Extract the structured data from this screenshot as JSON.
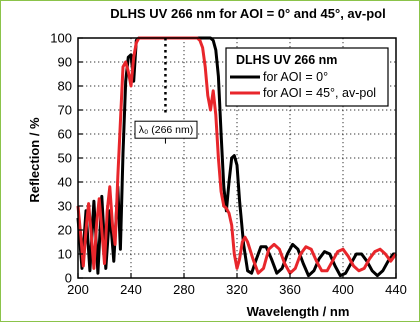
{
  "chart_data": {
    "type": "line",
    "title": "DLHS UV 266 nm for AOI = 0° and 45°, av-pol",
    "xlabel": "Wavelength / nm",
    "ylabel": "Reflection / %",
    "xlim": [
      200,
      440
    ],
    "ylim": [
      0,
      100
    ],
    "xticks": [
      200,
      240,
      280,
      320,
      360,
      400,
      440
    ],
    "yticks": [
      0,
      10,
      20,
      30,
      40,
      50,
      60,
      70,
      80,
      90,
      100
    ],
    "grid": true,
    "legend": {
      "title": "DLHS UV 266 nm",
      "position": "top-right"
    },
    "annotation": {
      "text": "λ₀ (266 nm)",
      "x": 266
    },
    "series": [
      {
        "name": "for AOI = 0°",
        "color": "#000000",
        "points": [
          [
            200,
            25
          ],
          [
            203,
            4
          ],
          [
            206,
            28
          ],
          [
            209,
            3
          ],
          [
            212,
            32
          ],
          [
            215,
            2
          ],
          [
            218,
            34
          ],
          [
            221,
            4
          ],
          [
            224,
            28
          ],
          [
            227,
            7
          ],
          [
            230,
            38
          ],
          [
            232,
            12
          ],
          [
            234,
            52
          ],
          [
            236,
            82
          ],
          [
            238,
            92
          ],
          [
            240,
            93
          ],
          [
            242,
            82
          ],
          [
            244,
            99
          ],
          [
            246,
            100
          ],
          [
            300,
            100
          ],
          [
            302,
            99
          ],
          [
            304,
            95
          ],
          [
            306,
            84
          ],
          [
            308,
            60
          ],
          [
            310,
            38
          ],
          [
            312,
            28
          ],
          [
            314,
            40
          ],
          [
            316,
            50
          ],
          [
            318,
            51
          ],
          [
            320,
            47
          ],
          [
            322,
            32
          ],
          [
            325,
            14
          ],
          [
            328,
            3
          ],
          [
            331,
            2
          ],
          [
            334,
            7
          ],
          [
            338,
            13
          ],
          [
            342,
            13
          ],
          [
            346,
            8
          ],
          [
            350,
            2
          ],
          [
            354,
            4
          ],
          [
            358,
            10
          ],
          [
            362,
            14
          ],
          [
            366,
            12
          ],
          [
            370,
            6
          ],
          [
            374,
            1
          ],
          [
            378,
            3
          ],
          [
            382,
            8
          ],
          [
            386,
            11
          ],
          [
            390,
            10
          ],
          [
            394,
            5
          ],
          [
            398,
            1
          ],
          [
            402,
            2
          ],
          [
            406,
            6
          ],
          [
            410,
            10
          ],
          [
            414,
            10
          ],
          [
            418,
            7
          ],
          [
            422,
            3
          ],
          [
            426,
            1
          ],
          [
            430,
            3
          ],
          [
            434,
            7
          ],
          [
            438,
            10
          ],
          [
            440,
            10
          ]
        ]
      },
      {
        "name": "for AOI = 45°, av-pol",
        "color": "#e8262b",
        "points": [
          [
            200,
            30
          ],
          [
            202,
            18
          ],
          [
            204,
            5
          ],
          [
            206,
            20
          ],
          [
            208,
            31
          ],
          [
            210,
            18
          ],
          [
            212,
            4
          ],
          [
            214,
            22
          ],
          [
            216,
            33
          ],
          [
            218,
            20
          ],
          [
            220,
            6
          ],
          [
            222,
            28
          ],
          [
            224,
            38
          ],
          [
            226,
            22
          ],
          [
            228,
            14
          ],
          [
            230,
            42
          ],
          [
            232,
            65
          ],
          [
            234,
            88
          ],
          [
            236,
            90
          ],
          [
            238,
            86
          ],
          [
            240,
            80
          ],
          [
            242,
            92
          ],
          [
            244,
            98
          ],
          [
            246,
            100
          ],
          [
            290,
            100
          ],
          [
            292,
            99
          ],
          [
            294,
            96
          ],
          [
            296,
            88
          ],
          [
            298,
            76
          ],
          [
            300,
            70
          ],
          [
            302,
            78
          ],
          [
            304,
            68
          ],
          [
            306,
            50
          ],
          [
            308,
            36
          ],
          [
            310,
            30
          ],
          [
            312,
            29
          ],
          [
            314,
            27
          ],
          [
            316,
            22
          ],
          [
            318,
            10
          ],
          [
            320,
            4
          ],
          [
            322,
            8
          ],
          [
            324,
            15
          ],
          [
            326,
            17
          ],
          [
            328,
            15
          ],
          [
            332,
            8
          ],
          [
            336,
            2
          ],
          [
            340,
            4
          ],
          [
            344,
            12
          ],
          [
            348,
            14
          ],
          [
            352,
            12
          ],
          [
            356,
            6
          ],
          [
            360,
            2
          ],
          [
            364,
            4
          ],
          [
            368,
            10
          ],
          [
            372,
            13
          ],
          [
            376,
            12
          ],
          [
            380,
            7
          ],
          [
            384,
            3
          ],
          [
            388,
            3
          ],
          [
            392,
            7
          ],
          [
            396,
            11
          ],
          [
            400,
            12
          ],
          [
            404,
            9
          ],
          [
            408,
            5
          ],
          [
            412,
            3
          ],
          [
            416,
            4
          ],
          [
            420,
            8
          ],
          [
            424,
            11
          ],
          [
            428,
            12
          ],
          [
            432,
            10
          ],
          [
            436,
            7
          ],
          [
            440,
            10
          ]
        ]
      }
    ]
  }
}
